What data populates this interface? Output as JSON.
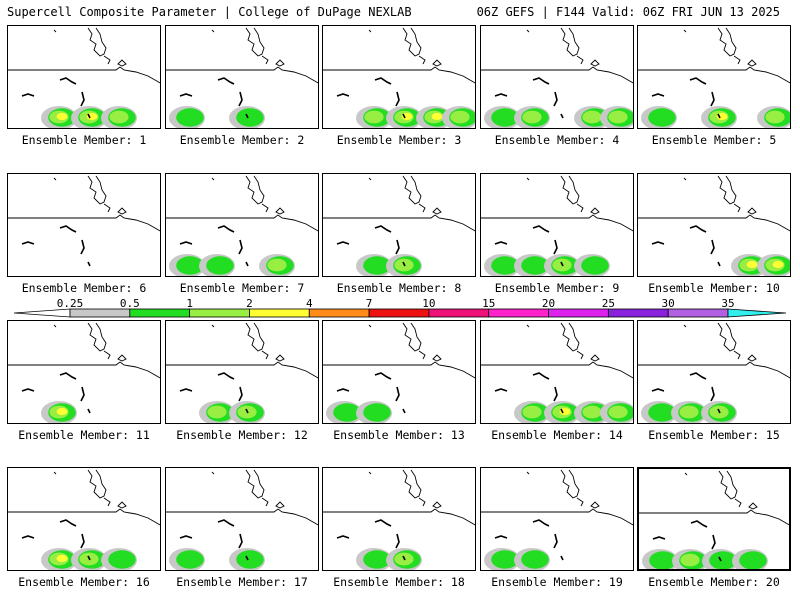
{
  "header": {
    "left_title": "Supercell Composite Parameter | College of DuPage NEXLAB",
    "right_title": "06Z GEFS | F144 Valid: 06Z FRI JUN 13 2025"
  },
  "panel_label_prefix": "Ensemble Member:",
  "members": [
    {
      "number": "1",
      "activity": [
        [
          1,
          3
        ],
        [
          2,
          3
        ],
        [
          3,
          2
        ]
      ]
    },
    {
      "number": "2",
      "activity": [
        [
          0,
          1
        ],
        [
          2,
          1
        ]
      ]
    },
    {
      "number": "3",
      "activity": [
        [
          1,
          2
        ],
        [
          2,
          3
        ],
        [
          3,
          3
        ],
        [
          4,
          2
        ]
      ]
    },
    {
      "number": "4",
      "activity": [
        [
          0,
          1
        ],
        [
          1,
          2
        ],
        [
          3,
          2
        ],
        [
          4,
          2
        ]
      ]
    },
    {
      "number": "5",
      "activity": [
        [
          0,
          1
        ],
        [
          2,
          3
        ],
        [
          4,
          2
        ]
      ]
    },
    {
      "number": "6",
      "activity": []
    },
    {
      "number": "7",
      "activity": [
        [
          0,
          1
        ],
        [
          1,
          1
        ],
        [
          3,
          2
        ]
      ]
    },
    {
      "number": "8",
      "activity": [
        [
          1,
          1
        ],
        [
          2,
          2
        ]
      ]
    },
    {
      "number": "9",
      "activity": [
        [
          0,
          1
        ],
        [
          1,
          1
        ],
        [
          2,
          2
        ],
        [
          3,
          1
        ]
      ]
    },
    {
      "number": "10",
      "activity": [
        [
          3,
          3
        ],
        [
          4,
          3
        ]
      ]
    },
    {
      "number": "11",
      "activity": [
        [
          1,
          3
        ]
      ]
    },
    {
      "number": "12",
      "activity": [
        [
          1,
          2
        ],
        [
          2,
          2
        ]
      ]
    },
    {
      "number": "13",
      "activity": [
        [
          0,
          1
        ],
        [
          1,
          1
        ]
      ]
    },
    {
      "number": "14",
      "activity": [
        [
          1,
          2
        ],
        [
          2,
          3
        ],
        [
          3,
          2
        ],
        [
          4,
          2
        ]
      ]
    },
    {
      "number": "15",
      "activity": [
        [
          0,
          1
        ],
        [
          1,
          2
        ],
        [
          2,
          2
        ]
      ]
    },
    {
      "number": "16",
      "activity": [
        [
          1,
          3
        ],
        [
          2,
          2
        ],
        [
          3,
          1
        ]
      ]
    },
    {
      "number": "17",
      "activity": [
        [
          0,
          1
        ],
        [
          2,
          1
        ]
      ]
    },
    {
      "number": "18",
      "activity": [
        [
          1,
          1
        ],
        [
          2,
          2
        ]
      ]
    },
    {
      "number": "19",
      "activity": [
        [
          0,
          1
        ],
        [
          1,
          1
        ]
      ]
    },
    {
      "number": "20",
      "activity": [
        [
          0,
          1
        ],
        [
          1,
          2
        ],
        [
          2,
          1
        ],
        [
          3,
          1
        ]
      ]
    }
  ],
  "colorbar": {
    "labels": [
      "0.25",
      "0.5",
      "1",
      "2",
      "4",
      "7",
      "10",
      "15",
      "20",
      "25",
      "30",
      "35"
    ],
    "colors": [
      "#ffffff",
      "#c8c8c8",
      "#22dd22",
      "#99ee44",
      "#ffff33",
      "#ff8c1a",
      "#ee1111",
      "#ee1177",
      "#ff22cc",
      "#dd22ee",
      "#8a22dd",
      "#b060e0",
      "#33eeee"
    ]
  },
  "shading_colors": [
    "#c8c8c8",
    "#22dd22",
    "#99ee44",
    "#ffff33",
    "#ff8c1a",
    "#ee1111"
  ]
}
